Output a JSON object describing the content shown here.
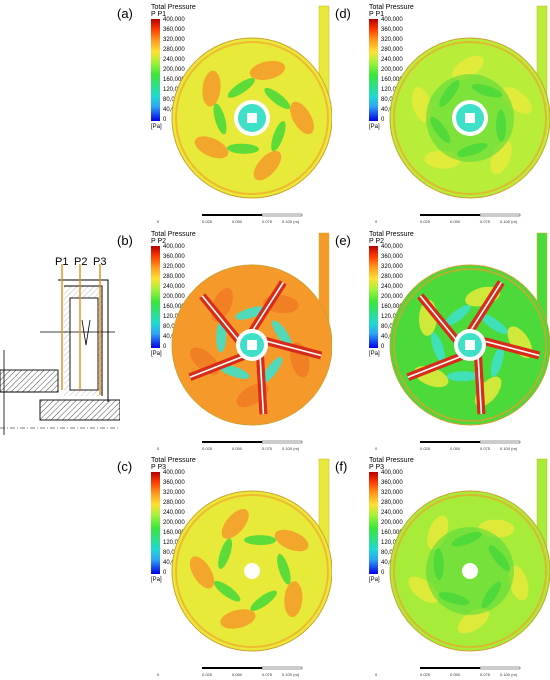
{
  "legend": {
    "title": "Total Pressure",
    "ticks": [
      "400,000",
      "360,000",
      "320,000",
      "280,000",
      "240,000",
      "200,000",
      "160,000",
      "120,000",
      "80,000",
      "40,000",
      "0"
    ],
    "unit": "[Pa]"
  },
  "panels": [
    {
      "label": "(a)",
      "subtitle": "P P1",
      "pattern": "a"
    },
    {
      "label": "(b)",
      "subtitle": "P P2",
      "pattern": "b"
    },
    {
      "label": "(c)",
      "subtitle": "P P3",
      "pattern": "c"
    },
    {
      "label": "(d)",
      "subtitle": "P P1",
      "pattern": "d"
    },
    {
      "label": "(e)",
      "subtitle": "P P2",
      "pattern": "e"
    },
    {
      "label": "(f)",
      "subtitle": "P P3",
      "pattern": "f"
    }
  ],
  "scale_bar": {
    "left_label": "0",
    "mid_labels": [
      "0.025",
      "0.050",
      "0.075"
    ],
    "right_label": "0.100 (m)"
  },
  "schematic": {
    "plane_labels": [
      "P1",
      "P2",
      "P3"
    ]
  },
  "colors": {
    "hot": "#d92b1a",
    "orange": "#f59a2a",
    "yellow": "#e8ea3a",
    "green": "#4cd93a",
    "cyan": "#3fe0c8",
    "white": "#ffffff"
  }
}
